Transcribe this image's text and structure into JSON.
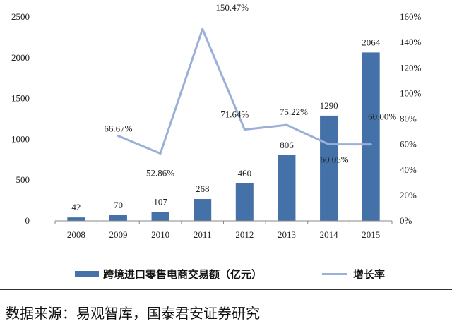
{
  "chart_data": {
    "type": "bar",
    "categories": [
      "2008",
      "2009",
      "2010",
      "2011",
      "2012",
      "2013",
      "2014",
      "2015"
    ],
    "series": [
      {
        "name": "跨境进口零售电商交易额（亿元）",
        "type": "bar",
        "axis": "left",
        "color": "#4472A8",
        "values": [
          42,
          70,
          107,
          268,
          460,
          806,
          1290,
          2064
        ],
        "labels": [
          "42",
          "70",
          "107",
          "268",
          "460",
          "806",
          "1290",
          "2064"
        ]
      },
      {
        "name": "增长率",
        "type": "line",
        "axis": "right",
        "color": "#9AB0D8",
        "values": [
          null,
          66.67,
          52.86,
          150.47,
          71.64,
          75.22,
          60.05,
          60.0
        ],
        "labels": [
          "",
          "66.67%",
          "52.86%",
          "150.47%",
          "71.64%",
          "75.22%",
          "60.05%",
          "60.00%"
        ]
      }
    ],
    "y_left": {
      "min": 0,
      "max": 2500,
      "ticks": [
        "0",
        "500",
        "1000",
        "1500",
        "2000",
        "2500"
      ]
    },
    "y_right": {
      "min": 0,
      "max": 160,
      "ticks": [
        "0%",
        "20%",
        "40%",
        "60%",
        "80%",
        "100%",
        "120%",
        "140%",
        "160%"
      ]
    },
    "grid": false,
    "legend_position": "bottom"
  },
  "legend": {
    "bar_label": "跨境进口零售电商交易额（亿元）",
    "line_label": "增长率"
  },
  "source": "数据来源：易观智库，国泰君安证券研究"
}
